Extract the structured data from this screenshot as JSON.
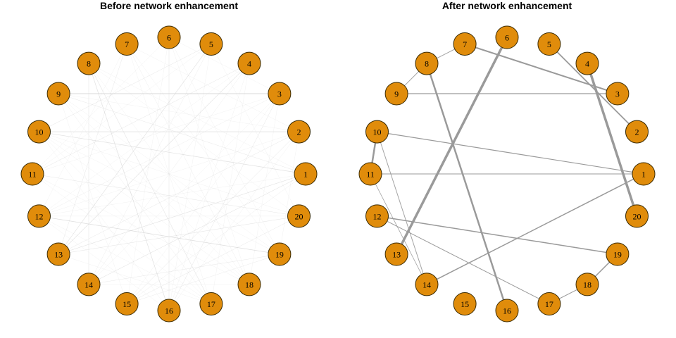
{
  "colors": {
    "node_fill": "#E08C0B",
    "node_stroke": "#3a2a00",
    "edge_before": "#d4d4d4",
    "edge_after": "#9a9a9a"
  },
  "panels": [
    {
      "title": "Before network enhancement",
      "edges": [
        [
          9,
          3,
          0.9,
          0.9
        ],
        [
          10,
          2,
          0.7,
          0.8
        ],
        [
          10,
          1,
          0.7,
          0.7
        ],
        [
          12,
          19,
          0.7,
          0.8
        ],
        [
          6,
          16,
          0.5,
          0.6
        ],
        [
          8,
          16,
          0.7,
          0.7
        ],
        [
          8,
          17,
          0.6,
          0.6
        ],
        [
          7,
          18,
          0.4,
          0.5
        ],
        [
          5,
          13,
          0.6,
          0.7
        ],
        [
          4,
          13,
          0.6,
          0.7
        ],
        [
          4,
          14,
          0.4,
          0.5
        ],
        [
          5,
          14,
          0.4,
          0.5
        ],
        [
          3,
          16,
          0.5,
          0.6
        ],
        [
          2,
          15,
          0.5,
          0.6
        ],
        [
          1,
          13,
          0.6,
          0.7
        ],
        [
          1,
          14,
          0.5,
          0.6
        ],
        [
          20,
          11,
          0.5,
          0.6
        ],
        [
          19,
          15,
          0.4,
          0.6
        ],
        [
          20,
          13,
          0.4,
          0.5
        ],
        [
          11,
          4,
          0.5,
          0.6
        ],
        [
          10,
          5,
          0.5,
          0.6
        ],
        [
          12,
          3,
          0.4,
          0.5
        ],
        [
          13,
          20,
          0.4,
          0.5
        ],
        [
          14,
          19,
          0.3,
          0.5
        ],
        [
          15,
          1,
          0.4,
          0.5
        ],
        [
          16,
          2,
          0.3,
          0.5
        ],
        [
          17,
          9,
          0.4,
          0.5
        ],
        [
          18,
          8,
          0.3,
          0.5
        ],
        [
          7,
          17,
          0.3,
          0.5
        ],
        [
          6,
          15,
          0.3,
          0.5
        ],
        [
          5,
          11,
          0.3,
          0.5
        ],
        [
          4,
          12,
          0.3,
          0.5
        ],
        [
          3,
          11,
          0.3,
          0.5
        ],
        [
          2,
          12,
          0.3,
          0.5
        ],
        [
          1,
          9,
          0.3,
          0.5
        ],
        [
          20,
          10,
          0.3,
          0.5
        ],
        [
          19,
          9,
          0.3,
          0.5
        ],
        [
          18,
          10,
          0.3,
          0.5
        ],
        [
          7,
          13,
          0.3,
          0.5
        ],
        [
          8,
          14,
          0.3,
          0.5
        ],
        [
          6,
          19,
          0.3,
          0.5
        ],
        [
          5,
          20,
          0.3,
          0.5
        ],
        [
          3,
          14,
          0.3,
          0.5
        ],
        [
          2,
          13,
          0.3,
          0.5
        ],
        [
          1,
          12,
          0.3,
          0.5
        ],
        [
          20,
          12,
          0.3,
          0.5
        ],
        [
          16,
          10,
          0.3,
          0.5
        ],
        [
          17,
          11,
          0.3,
          0.5
        ],
        [
          15,
          9,
          0.3,
          0.5
        ],
        [
          14,
          8,
          0.3,
          0.5
        ],
        [
          13,
          7,
          0.3,
          0.5
        ],
        [
          4,
          16,
          0.3,
          0.5
        ],
        [
          3,
          15,
          0.3,
          0.5
        ],
        [
          6,
          18,
          0.3,
          0.5
        ],
        [
          7,
          19,
          0.3,
          0.5
        ],
        [
          8,
          20,
          0.3,
          0.5
        ],
        [
          9,
          1,
          0.3,
          0.5
        ],
        [
          10,
          19,
          0.3,
          0.5
        ],
        [
          11,
          18,
          0.3,
          0.5
        ],
        [
          12,
          17,
          0.3,
          0.5
        ],
        [
          13,
          2,
          0.3,
          0.5
        ],
        [
          14,
          1,
          0.3,
          0.5
        ],
        [
          15,
          20,
          0.3,
          0.5
        ],
        [
          16,
          5,
          0.3,
          0.5
        ],
        [
          17,
          4,
          0.3,
          0.5
        ],
        [
          18,
          3,
          0.3,
          0.5
        ],
        [
          19,
          2,
          0.3,
          0.5
        ],
        [
          11,
          6,
          0.3,
          0.5
        ],
        [
          12,
          7,
          0.3,
          0.5
        ],
        [
          9,
          18,
          0.3,
          0.5
        ],
        [
          10,
          17,
          0.3,
          0.5
        ],
        [
          8,
          1,
          0.3,
          0.5
        ],
        [
          7,
          2,
          0.3,
          0.5
        ],
        [
          6,
          3,
          0.3,
          0.5
        ],
        [
          9,
          2,
          0.3,
          0.5
        ],
        [
          16,
          12,
          0.3,
          0.5
        ],
        [
          17,
          13,
          0.3,
          0.5
        ],
        [
          18,
          14,
          0.3,
          0.5
        ],
        [
          19,
          14,
          0.3,
          0.5
        ],
        [
          20,
          15,
          0.3,
          0.5
        ]
      ]
    },
    {
      "title": "After network enhancement",
      "edges": [
        [
          6,
          13,
          3.5,
          1.0
        ],
        [
          4,
          20,
          3.5,
          1.0
        ],
        [
          8,
          16,
          2.5,
          1.0
        ],
        [
          7,
          3,
          2.0,
          1.0
        ],
        [
          5,
          2,
          1.8,
          1.0
        ],
        [
          9,
          3,
          1.2,
          1.0
        ],
        [
          10,
          1,
          1.2,
          1.0
        ],
        [
          10,
          11,
          2.5,
          1.0
        ],
        [
          11,
          1,
          1.0,
          1.0
        ],
        [
          12,
          19,
          1.5,
          1.0
        ],
        [
          12,
          17,
          1.0,
          1.0
        ],
        [
          14,
          1,
          1.5,
          1.0
        ],
        [
          10,
          14,
          1.0,
          0.9
        ],
        [
          11,
          14,
          0.8,
          0.9
        ],
        [
          7,
          8,
          1.0,
          0.9
        ],
        [
          8,
          9,
          1.0,
          0.9
        ],
        [
          18,
          19,
          1.5,
          1.0
        ],
        [
          17,
          18,
          1.0,
          1.0
        ]
      ]
    }
  ]
}
